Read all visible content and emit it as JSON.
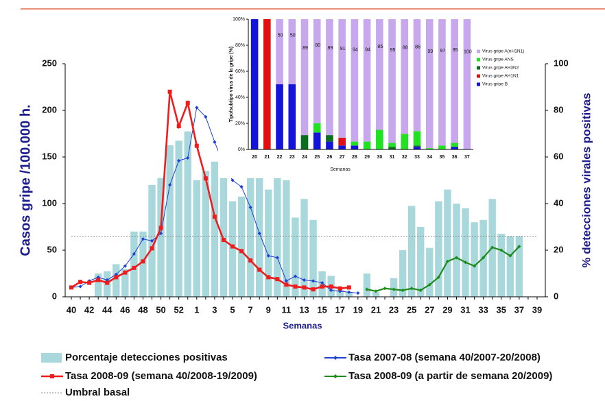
{
  "chart_data": [
    {
      "type": "combo",
      "x_label": "Semanas",
      "y_label": "Casos gripe /100.000 h.",
      "y2_label": "% detecciones virales positivas",
      "categories": [
        "40",
        null,
        "42",
        null,
        "44",
        null,
        "46",
        null,
        "48",
        null,
        "50",
        null,
        "52",
        null,
        "1",
        null,
        "3",
        null,
        "5",
        null,
        "7",
        null,
        "9",
        null,
        "11",
        null,
        "13",
        null,
        "15",
        null,
        "17",
        null,
        "19",
        null,
        "21",
        null,
        "23",
        null,
        "25",
        null,
        "27",
        null,
        "29",
        null,
        "31",
        null,
        "33",
        null,
        "35",
        null,
        "37",
        null,
        "39"
      ],
      "ylim": [
        0,
        250
      ],
      "yticks": [
        0,
        50,
        100,
        150,
        200,
        250
      ],
      "y2lim": [
        0,
        100
      ],
      "y2ticks": [
        0,
        20,
        40,
        60,
        80,
        100
      ],
      "series": [
        {
          "name": "Porcentaje detecciones positivas",
          "type": "bar",
          "axis": "y2",
          "color": "#a8d8dc",
          "values": [
            null,
            null,
            null,
            10,
            11,
            14,
            12,
            28,
            28,
            48,
            51,
            65,
            67,
            71,
            50,
            54,
            58,
            56,
            41,
            43,
            51,
            57,
            46,
            51,
            50,
            34,
            42,
            33,
            11,
            9,
            3,
            2,
            null,
            10,
            2,
            null,
            8,
            20,
            39,
            30,
            21,
            41,
            46,
            40,
            38,
            32,
            33,
            42,
            27,
            26,
            26,
            null,
            null
          ]
        },
        {
          "name": "Tasa 2007-08 (semana 40/2007-20/2008)",
          "type": "line",
          "marker": "diamond",
          "color": "#1f3fd0",
          "values": [
            10,
            11,
            17,
            21,
            18,
            24,
            33,
            46,
            62,
            60,
            68,
            120,
            146,
            149,
            203,
            193,
            166,
            142,
            125,
            118,
            96,
            68,
            44,
            42,
            17,
            22,
            18,
            17,
            15,
            7,
            6,
            5,
            4,
            null,
            null,
            null,
            null,
            null,
            null,
            null,
            null,
            null,
            null,
            null,
            null,
            null,
            null,
            null,
            null,
            null,
            null,
            null,
            null
          ]
        },
        {
          "name": "Tasa 2008-09 (semana 40/2008-19/2009)",
          "type": "line",
          "marker": "square",
          "color": "#ee1c1c",
          "values": [
            10,
            16,
            15,
            18,
            15,
            21,
            26,
            31,
            38,
            52,
            74,
            220,
            183,
            208,
            162,
            127,
            86,
            61,
            54,
            49,
            39,
            29,
            21,
            19,
            13,
            11,
            10,
            8,
            11,
            11,
            9,
            10,
            null,
            null,
            null,
            null,
            null,
            null,
            null,
            null,
            null,
            null,
            null,
            null,
            null,
            null,
            null,
            null,
            null,
            null,
            null,
            null,
            null
          ]
        },
        {
          "name": "Tasa 2008-09 (a partir de semana 20/2009)",
          "type": "line",
          "marker": "diamond",
          "color": "#1e8c1e",
          "values": [
            null,
            null,
            null,
            null,
            null,
            null,
            null,
            null,
            null,
            null,
            null,
            null,
            null,
            null,
            null,
            null,
            null,
            null,
            null,
            null,
            null,
            null,
            null,
            null,
            null,
            null,
            null,
            null,
            null,
            null,
            null,
            null,
            null,
            8,
            6,
            9,
            8,
            7,
            9,
            7,
            13,
            21,
            38,
            42,
            37,
            33,
            42,
            53,
            50,
            44,
            54,
            null,
            null
          ]
        }
      ],
      "reference_line": {
        "name": "Umbral basal",
        "value": 65,
        "color": "#888888"
      }
    },
    {
      "type": "stacked_bar",
      "x_label": "Semanas",
      "y_label": "Tipo/subtipo virus de la gripe (%)",
      "categories": [
        "20",
        "21",
        "22",
        "23",
        "24",
        "25",
        "26",
        "27",
        "28",
        "29",
        "30",
        "31",
        "32",
        "33",
        "34",
        "35",
        "36",
        "37"
      ],
      "ylim": [
        0,
        100
      ],
      "yticks": [
        {
          "value": 0,
          "label": "0%"
        },
        {
          "value": 20,
          "label": "20%"
        },
        {
          "value": 40,
          "label": "40%"
        },
        {
          "value": 60,
          "label": "60%"
        },
        {
          "value": 80,
          "label": "80%"
        },
        {
          "value": 100,
          "label": "100%"
        }
      ],
      "series": [
        {
          "name": "Virus gripe B",
          "color": "#1414d8",
          "values": [
            100,
            0,
            50,
            50,
            0,
            13,
            6,
            3,
            3,
            0,
            0,
            0,
            0,
            2,
            0,
            0,
            2,
            0
          ]
        },
        {
          "name": "Virus gripe AH1N1",
          "color": "#e01010",
          "values": [
            0,
            100,
            0,
            0,
            0,
            0,
            0,
            6,
            0,
            0,
            0,
            0,
            0,
            0,
            0,
            0,
            0,
            0
          ]
        },
        {
          "name": "Virus gripe AH3N2",
          "color": "#0b6e1e",
          "values": [
            0,
            0,
            0,
            0,
            11,
            0,
            5,
            0,
            0,
            0,
            0,
            2,
            0,
            1,
            0,
            0,
            0,
            0
          ]
        },
        {
          "name": "Virus gripe ANS",
          "color": "#22e022",
          "values": [
            0,
            0,
            0,
            0,
            0,
            7,
            0,
            0,
            3,
            6,
            15,
            3,
            12,
            11,
            1,
            3,
            3,
            0
          ]
        },
        {
          "name": "Virus gripe A(nH1N1)",
          "color": "#c8a8ec",
          "show_labels": true,
          "values": [
            0,
            0,
            50,
            50,
            89,
            80,
            89,
            91,
            94,
            94,
            85,
            95,
            88,
            86,
            99,
            97,
            95,
            100
          ]
        }
      ]
    }
  ]
}
